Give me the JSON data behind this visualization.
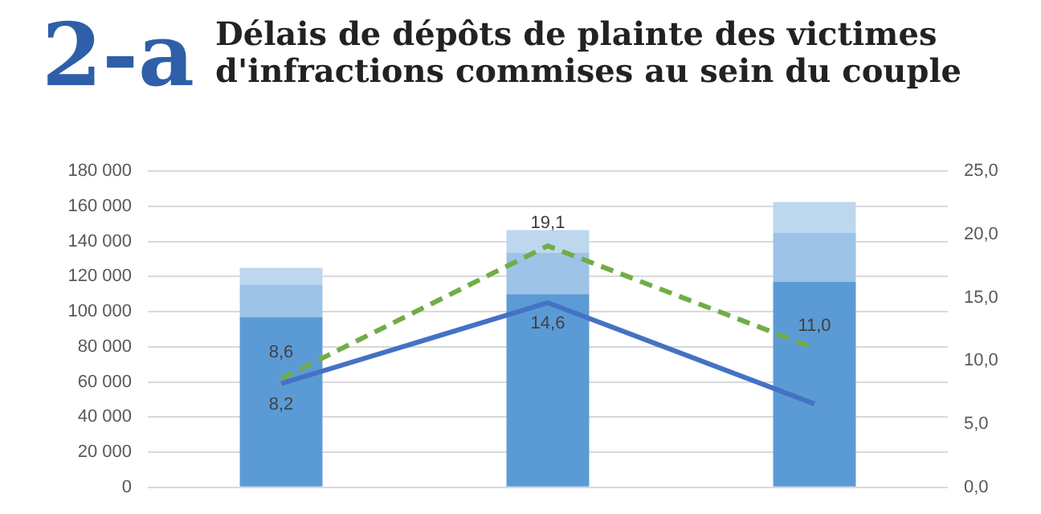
{
  "chart_data": {
    "type": "bar",
    "title": "Délais de dépôts de plainte des victimes d'infractions commises au sein du couple",
    "annotations": [
      "2-a"
    ],
    "categories": [
      null,
      null,
      null
    ],
    "stacked": true,
    "series": [
      {
        "color": "#5b9bd5",
        "values": [
          97000,
          110000,
          117000
        ]
      },
      {
        "color": "#9dc3e6",
        "values": [
          18500,
          23500,
          28000
        ]
      },
      {
        "color": "#bdd7ee",
        "values": [
          9500,
          13000,
          17500
        ]
      },
      {
        "type": "line",
        "axis": "y2",
        "color": "#70ad47",
        "line_style": "dashed",
        "values": [
          8.6,
          19.1,
          11.0
        ],
        "value_labels": [
          "8,6",
          "19,1",
          "11,0"
        ]
      },
      {
        "type": "line",
        "axis": "y2",
        "color": "#4472c4",
        "line_style": "solid",
        "values": [
          8.2,
          14.6,
          6.6
        ],
        "value_labels": [
          "8,2",
          "14,6",
          null
        ]
      }
    ],
    "ylim": [
      0,
      180000
    ],
    "yticks": [
      {
        "value": 0,
        "label": "0"
      },
      {
        "value": 20000,
        "label": "20 000"
      },
      {
        "value": 40000,
        "label": "40 000"
      },
      {
        "value": 60000,
        "label": "60 000"
      },
      {
        "value": 80000,
        "label": "80 000"
      },
      {
        "value": 100000,
        "label": "100 000"
      },
      {
        "value": 120000,
        "label": "120 000"
      },
      {
        "value": 140000,
        "label": "140 000"
      },
      {
        "value": 160000,
        "label": "160 000"
      },
      {
        "value": 180000,
        "label": "180 000"
      }
    ],
    "y2lim": [
      0,
      25
    ],
    "y2ticks": [
      {
        "value": 0,
        "label": "0,0"
      },
      {
        "value": 5,
        "label": "5,0"
      },
      {
        "value": 10,
        "label": "10,0"
      },
      {
        "value": 15,
        "label": "15,0"
      },
      {
        "value": 20,
        "label": "20,0"
      },
      {
        "value": 25,
        "label": "25,0"
      }
    ],
    "grid": "y",
    "legend": false,
    "marker": "none"
  }
}
